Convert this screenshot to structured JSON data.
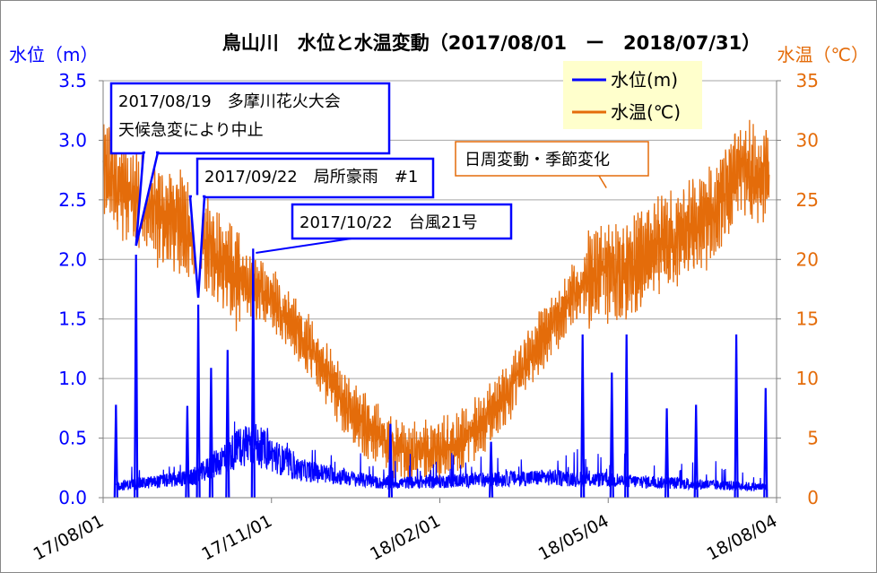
{
  "chart_data": {
    "type": "line",
    "title": "鳥山川　水位と水温変動（2017/08/01　ー　2018/07/31）",
    "ylabel_left": "水位（m）",
    "ylabel_right": "水温（℃）",
    "x_tick_labels": [
      "17/08/01",
      "17/11/01",
      "18/02/01",
      "18/05/04",
      "18/08/04"
    ],
    "x_ticks": [
      "2017-08-01",
      "2017-11-01",
      "2018-02-01",
      "2018-05-04",
      "2018-08-04"
    ],
    "xlim": [
      "2017-08-01",
      "2018-08-04"
    ],
    "ylim_left": [
      0,
      3.5
    ],
    "ylim_right": [
      0,
      35
    ],
    "y_ticks_left": [
      "0.0",
      "0.5",
      "1.0",
      "1.5",
      "2.0",
      "2.5",
      "3.0",
      "3.5"
    ],
    "y_ticks_right": [
      "0",
      "5",
      "10",
      "15",
      "20",
      "25",
      "30",
      "35"
    ],
    "grid": true,
    "legend_position": "top-right",
    "colors": {
      "water_level": "#0000ff",
      "water_temp": "#e46c0a",
      "legend_bg": "#ffffcc"
    },
    "series": [
      {
        "name": "水位(m)",
        "axis": "left",
        "peaks": [
          {
            "date": "2017-08-08",
            "value": 0.78
          },
          {
            "date": "2017-08-19",
            "value": 2.04
          },
          {
            "date": "2017-09-16",
            "value": 0.77
          },
          {
            "date": "2017-09-22",
            "value": 1.62
          },
          {
            "date": "2017-09-29",
            "value": 1.09
          },
          {
            "date": "2017-10-08",
            "value": 1.24
          },
          {
            "date": "2017-10-22",
            "value": 2.09
          },
          {
            "date": "2018-01-05",
            "value": 0.62
          },
          {
            "date": "2018-03-01",
            "value": 0.47
          },
          {
            "date": "2018-04-20",
            "value": 1.37
          },
          {
            "date": "2018-05-06",
            "value": 1.05
          },
          {
            "date": "2018-05-14",
            "value": 1.37
          },
          {
            "date": "2018-06-05",
            "value": 0.75
          },
          {
            "date": "2018-06-21",
            "value": 0.78
          },
          {
            "date": "2018-07-13",
            "value": 1.37
          },
          {
            "date": "2018-07-29",
            "value": 0.92
          }
        ],
        "baseline": [
          {
            "date": "2017-08-01",
            "value": 0.05
          },
          {
            "date": "2017-09-20",
            "value": 0.1
          },
          {
            "date": "2017-10-20",
            "value": 0.28
          },
          {
            "date": "2017-11-15",
            "value": 0.14
          },
          {
            "date": "2018-01-01",
            "value": 0.07
          },
          {
            "date": "2018-04-01",
            "value": 0.1
          },
          {
            "date": "2018-08-01",
            "value": 0.05
          }
        ]
      },
      {
        "name": "水温(℃)",
        "axis": "right",
        "trend": [
          {
            "date": "2017-08-01",
            "value": 27.5
          },
          {
            "date": "2017-08-15",
            "value": 25.5
          },
          {
            "date": "2017-09-01",
            "value": 23.5
          },
          {
            "date": "2017-09-15",
            "value": 23.0
          },
          {
            "date": "2017-10-01",
            "value": 20.5
          },
          {
            "date": "2017-10-15",
            "value": 18.0
          },
          {
            "date": "2017-11-01",
            "value": 17.0
          },
          {
            "date": "2017-11-15",
            "value": 14.0
          },
          {
            "date": "2017-12-01",
            "value": 10.5
          },
          {
            "date": "2017-12-15",
            "value": 7.0
          },
          {
            "date": "2018-01-01",
            "value": 5.0
          },
          {
            "date": "2018-01-15",
            "value": 3.5
          },
          {
            "date": "2018-02-01",
            "value": 4.0
          },
          {
            "date": "2018-02-15",
            "value": 5.0
          },
          {
            "date": "2018-03-01",
            "value": 7.0
          },
          {
            "date": "2018-03-15",
            "value": 10.0
          },
          {
            "date": "2018-04-01",
            "value": 14.0
          },
          {
            "date": "2018-04-15",
            "value": 17.0
          },
          {
            "date": "2018-05-01",
            "value": 19.0
          },
          {
            "date": "2018-05-15",
            "value": 19.0
          },
          {
            "date": "2018-06-01",
            "value": 21.0
          },
          {
            "date": "2018-06-15",
            "value": 22.0
          },
          {
            "date": "2018-07-01",
            "value": 24.0
          },
          {
            "date": "2018-07-15",
            "value": 27.5
          },
          {
            "date": "2018-07-31",
            "value": 27.0
          }
        ]
      }
    ],
    "annotations": [
      {
        "lines": [
          "2017/08/19　多摩川花火大会",
          "天候急変により中止"
        ],
        "color": "#0000ff",
        "target_date": "2017-08-19",
        "target_series": "水位(m)"
      },
      {
        "lines": [
          "2017/09/22　局所豪雨　#1"
        ],
        "color": "#0000ff",
        "target_date": "2017-09-22",
        "target_series": "水位(m)"
      },
      {
        "lines": [
          "2017/10/22　台風21号"
        ],
        "color": "#0000ff",
        "target_date": "2017-10-22",
        "target_series": "水位(m)"
      },
      {
        "lines": [
          "日周変動・季節変化"
        ],
        "color": "#e46c0a",
        "target_date": "2018-05-03",
        "target_series": "水温(℃)"
      }
    ]
  }
}
